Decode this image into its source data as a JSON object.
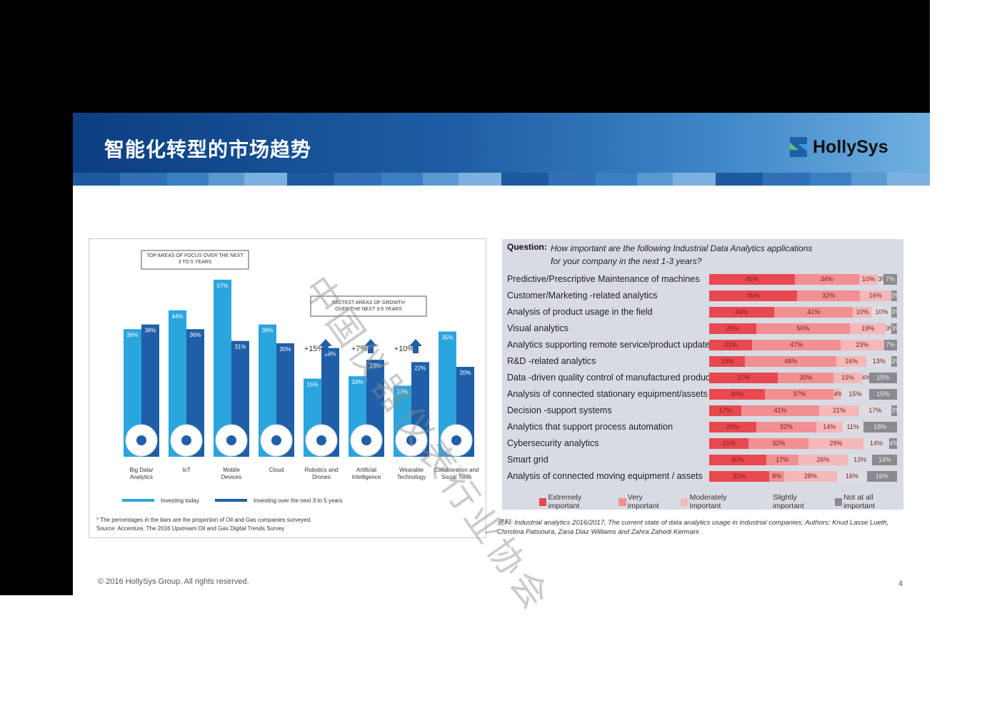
{
  "slide": {
    "title": "智能化转型的市场趋势",
    "logo_text": "HollySys",
    "footer": "© 2016 HollySys Group. All rights reserved.",
    "page_number": "4",
    "watermark": "中国仪器仪表行业协会"
  },
  "left_chart": {
    "callout_top": [
      "TOP AREAS OF FOCUS OVER THE NEXT",
      "3 TO 5 YEARS"
    ],
    "callout_growth": [
      "FASTEST AREAS OF GROWTH",
      "OVER THE NEXT 3-5 YEARS"
    ],
    "legend": [
      "Investing today",
      "Investing over the next 3 to 5 years"
    ],
    "footnote": [
      "* The percentages in the bars are the proportion of Oil and Gas companies surveyed.",
      "Source: Accenture, The 2016 Upstream Oil and Gas Digital Trends Survey"
    ]
  },
  "right_chart": {
    "question_label": "Question:",
    "question_text": "How important are the following Industrial Data Analytics applications for your company in the next 1-3 years?",
    "legend": [
      "Extremely important",
      "Very important",
      "Moderately important",
      "Slightly important",
      "Not at all important"
    ],
    "source": "资料: Industrial analytics 2016/2017, The current state of data analytics usage in industrial companies; Authors: Knud Lasse Lueth, Christina Patsioura, Zana Diaz Williams and Zahra Zahedi Kermani"
  },
  "chart_data": [
    {
      "type": "bar",
      "categories": [
        "Big Data/ Analytics",
        "IoT",
        "Mobile Devices",
        "Cloud",
        "Robotics and Drones",
        "Artificial Intelligence",
        "Wearable Technology",
        "Collaboration and Social Tools"
      ],
      "series": [
        {
          "name": "Investing today",
          "values": [
            36,
            44,
            57,
            38,
            15,
            16,
            12,
            35
          ]
        },
        {
          "name": "Investing over the next 3 to 5 years",
          "values": [
            38,
            36,
            31,
            30,
            28,
            23,
            22,
            20
          ]
        }
      ],
      "growth_labels": [
        "+15%",
        "+7%",
        "+10%"
      ],
      "icons": [
        "network-icon",
        "iot-signal-icon",
        "mobile-phone-icon",
        "cloud-icon",
        "robot-arm-icon",
        "brain-icon",
        "smartwatch-icon",
        "people-icon"
      ],
      "colors": {
        "today": "#2aa5de",
        "future": "#1f5fa8"
      }
    },
    {
      "type": "bar",
      "stacked": true,
      "orientation": "horizontal",
      "categories": [
        "Predictive/Prescriptive Maintenance of machines",
        "Customer/Marketing -related analytics",
        "Analysis of product usage in the field",
        "Visual analytics",
        "Analytics supporting remote service/product updates",
        "R&D -related analytics",
        "Data -driven quality control of manufactured products",
        "Analysis of connected stationary equipment/assets",
        "Decision -support systems",
        "Analytics that support process automation",
        "Cybersecurity analytics",
        "Smart grid",
        "Analysis of connected moving equipment / assets"
      ],
      "series": [
        {
          "name": "Extremely important",
          "values": [
            45,
            45,
            34,
            25,
            23,
            19,
            37,
            30,
            17,
            25,
            21,
            30,
            32
          ]
        },
        {
          "name": "Very important",
          "values": [
            34,
            32,
            41,
            50,
            47,
            48,
            30,
            37,
            41,
            32,
            32,
            17,
            8
          ]
        },
        {
          "name": "Moderately important",
          "values": [
            10,
            16,
            10,
            19,
            23,
            16,
            15,
            4,
            21,
            14,
            29,
            26,
            28
          ]
        },
        {
          "name": "Slightly important",
          "values": [
            3,
            0,
            10,
            3,
            0,
            13,
            4,
            15,
            17,
            11,
            14,
            13,
            16
          ]
        },
        {
          "name": "Not at all important",
          "values": [
            7,
            3,
            3,
            3,
            7,
            3,
            15,
            15,
            3,
            18,
            4,
            13,
            16
          ]
        }
      ],
      "colors": [
        "#e8484f",
        "#f28f92",
        "#f5b8b8",
        "#dcdde3",
        "#8a8a8f"
      ]
    }
  ]
}
